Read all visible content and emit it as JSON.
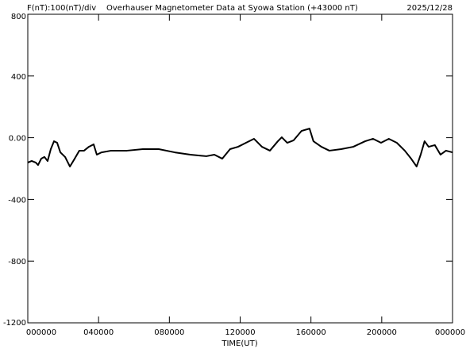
{
  "chart_data": {
    "type": "line",
    "title": "Overhauser Magnetometer Data at Syowa Station (+43000 nT)",
    "subtitle": "F(nT):100(nT)/div",
    "date": "2025/12/28",
    "x_label": "TIME(UT)",
    "xlim": [
      0,
      24
    ],
    "xticks": [
      {
        "value": 0,
        "label": "000000"
      },
      {
        "value": 4,
        "label": "040000"
      },
      {
        "value": 8,
        "label": "080000"
      },
      {
        "value": 12,
        "label": "120000"
      },
      {
        "value": 16,
        "label": "160000"
      },
      {
        "value": 20,
        "label": "200000"
      },
      {
        "value": 24,
        "label": "000000"
      }
    ],
    "ylim": [
      -1200,
      800
    ],
    "yticks": [
      -1200,
      -800,
      -400,
      {
        "value": 0,
        "label": "0.00"
      },
      400,
      800
    ],
    "grid": false,
    "series": [
      {
        "color": "#000000",
        "x": [
          0,
          0.22,
          0.45,
          0.58,
          0.76,
          0.94,
          1.12,
          1.3,
          1.48,
          1.66,
          1.84,
          2.11,
          2.38,
          2.65,
          2.91,
          3.18,
          3.45,
          3.72,
          3.9,
          4.17,
          4.71,
          5.61,
          6.5,
          7.4,
          8.3,
          9.19,
          10.09,
          10.54,
          10.99,
          11.43,
          11.88,
          12.33,
          12.78,
          13.23,
          13.68,
          14.13,
          14.35,
          14.66,
          15.02,
          15.47,
          15.92,
          16.14,
          16.59,
          17.04,
          17.71,
          18.39,
          19.06,
          19.51,
          19.96,
          20.4,
          20.85,
          21.3,
          21.66,
          21.97,
          22.2,
          22.42,
          22.65,
          23.0,
          23.32,
          23.63,
          23.99
        ],
        "values": [
          -161,
          -151,
          -161,
          -177,
          -136,
          -125,
          -151,
          -74,
          -23,
          -33,
          -95,
          -125,
          -187,
          -136,
          -84,
          -84,
          -59,
          -43,
          -110,
          -95,
          -84,
          -84,
          -74,
          -74,
          -95,
          -110,
          -120,
          -110,
          -136,
          -74,
          -59,
          -33,
          -7,
          -59,
          -84,
          -23,
          3,
          -33,
          -17,
          44,
          59,
          -23,
          -59,
          -84,
          -74,
          -59,
          -23,
          -7,
          -33,
          -7,
          -33,
          -84,
          -136,
          -187,
          -110,
          -23,
          -59,
          -48,
          -110,
          -84,
          -95
        ]
      }
    ]
  }
}
